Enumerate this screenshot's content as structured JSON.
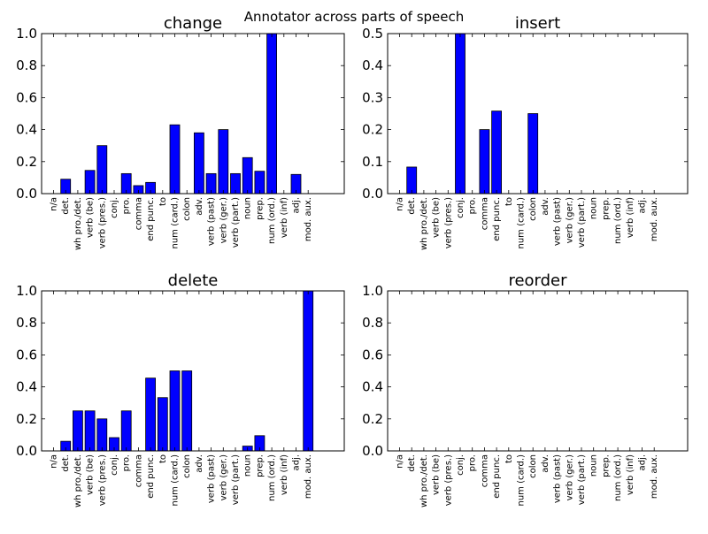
{
  "figure": {
    "title": "Annotator across parts of speech"
  },
  "colors": {
    "bar": "#0000ff",
    "bar_edge": "#000000",
    "axes": "#000000",
    "background": "#ffffff"
  },
  "chart_data": [
    {
      "type": "bar",
      "title": "change",
      "xlabel": "",
      "ylabel": "",
      "ylim": [
        0,
        1.0
      ],
      "yticks": [
        "0.0",
        "0.2",
        "0.4",
        "0.6",
        "0.8",
        "1.0"
      ],
      "yticks_values": [
        0,
        0.2,
        0.4,
        0.6,
        0.8,
        1.0
      ],
      "grid": false,
      "categories": [
        "n/a",
        "det.",
        "wh pro./det.",
        "verb (be)",
        "verb (pres.)",
        "conj.",
        "pro.",
        "comma",
        "end punc.",
        "to",
        "num (card.)",
        "colon",
        "adv.",
        "verb (past)",
        "verb (ger.)",
        "verb (part.)",
        "noun",
        "prep.",
        "num (ord.)",
        "verb (inf)",
        "adj.",
        "mod. aux."
      ],
      "values": [
        0,
        0.09,
        0,
        0.145,
        0.3,
        0,
        0.125,
        0.05,
        0.07,
        0,
        0.43,
        0,
        0.38,
        0.125,
        0.4,
        0.125,
        0.225,
        0.14,
        1.0,
        0,
        0.12,
        0
      ]
    },
    {
      "type": "bar",
      "title": "insert",
      "xlabel": "",
      "ylabel": "",
      "ylim": [
        0,
        0.5
      ],
      "yticks": [
        "0.0",
        "0.1",
        "0.2",
        "0.3",
        "0.4",
        "0.5"
      ],
      "yticks_values": [
        0,
        0.1,
        0.2,
        0.3,
        0.4,
        0.5
      ],
      "grid": false,
      "categories": [
        "n/a",
        "det.",
        "wh pro./det.",
        "verb (be)",
        "verb (pres.)",
        "conj.",
        "pro.",
        "comma",
        "end punc.",
        "to",
        "num (card.)",
        "colon",
        "adv.",
        "verb (past)",
        "verb (ger.)",
        "verb (part.)",
        "noun",
        "prep.",
        "num (ord.)",
        "verb (inf)",
        "adj.",
        "mod. aux."
      ],
      "values": [
        0,
        0.083,
        0,
        0,
        0,
        0.5,
        0,
        0.2,
        0.258,
        0,
        0,
        0.25,
        0,
        0,
        0,
        0,
        0,
        0,
        0,
        0,
        0,
        0
      ]
    },
    {
      "type": "bar",
      "title": "delete",
      "xlabel": "",
      "ylabel": "",
      "ylim": [
        0,
        1.0
      ],
      "yticks": [
        "0.0",
        "0.2",
        "0.4",
        "0.6",
        "0.8",
        "1.0"
      ],
      "yticks_values": [
        0,
        0.2,
        0.4,
        0.6,
        0.8,
        1.0
      ],
      "grid": false,
      "categories": [
        "n/a",
        "det.",
        "wh pro./det.",
        "verb (be)",
        "verb (pres.)",
        "conj.",
        "pro.",
        "comma",
        "end punc.",
        "to",
        "num (card.)",
        "colon",
        "adv.",
        "verb (past)",
        "verb (ger.)",
        "verb (part.)",
        "noun",
        "prep.",
        "num (ord.)",
        "verb (inf)",
        "adj.",
        "mod. aux."
      ],
      "values": [
        0,
        0.06,
        0.25,
        0.25,
        0.2,
        0.083,
        0.25,
        0,
        0.455,
        0.333,
        0.5,
        0.5,
        0,
        0,
        0,
        0,
        0.03,
        0.095,
        0,
        0,
        0,
        1.0
      ]
    },
    {
      "type": "bar",
      "title": "reorder",
      "xlabel": "",
      "ylabel": "",
      "ylim": [
        0,
        1.0
      ],
      "yticks": [
        "0.0",
        "0.2",
        "0.4",
        "0.6",
        "0.8",
        "1.0"
      ],
      "yticks_values": [
        0,
        0.2,
        0.4,
        0.6,
        0.8,
        1.0
      ],
      "grid": false,
      "categories": [
        "n/a",
        "det.",
        "wh pro./det.",
        "verb (be)",
        "verb (pres.)",
        "conj.",
        "pro.",
        "comma",
        "end punc.",
        "to",
        "num (card.)",
        "colon",
        "adv.",
        "verb (past)",
        "verb (ger.)",
        "verb (part.)",
        "noun",
        "prep.",
        "num (ord.)",
        "verb (inf)",
        "adj.",
        "mod. aux."
      ],
      "values": [
        0,
        0,
        0,
        0,
        0,
        0,
        0,
        0,
        0,
        0,
        0,
        0,
        0,
        0,
        0,
        0,
        0,
        0,
        0,
        0,
        0,
        0
      ]
    }
  ]
}
